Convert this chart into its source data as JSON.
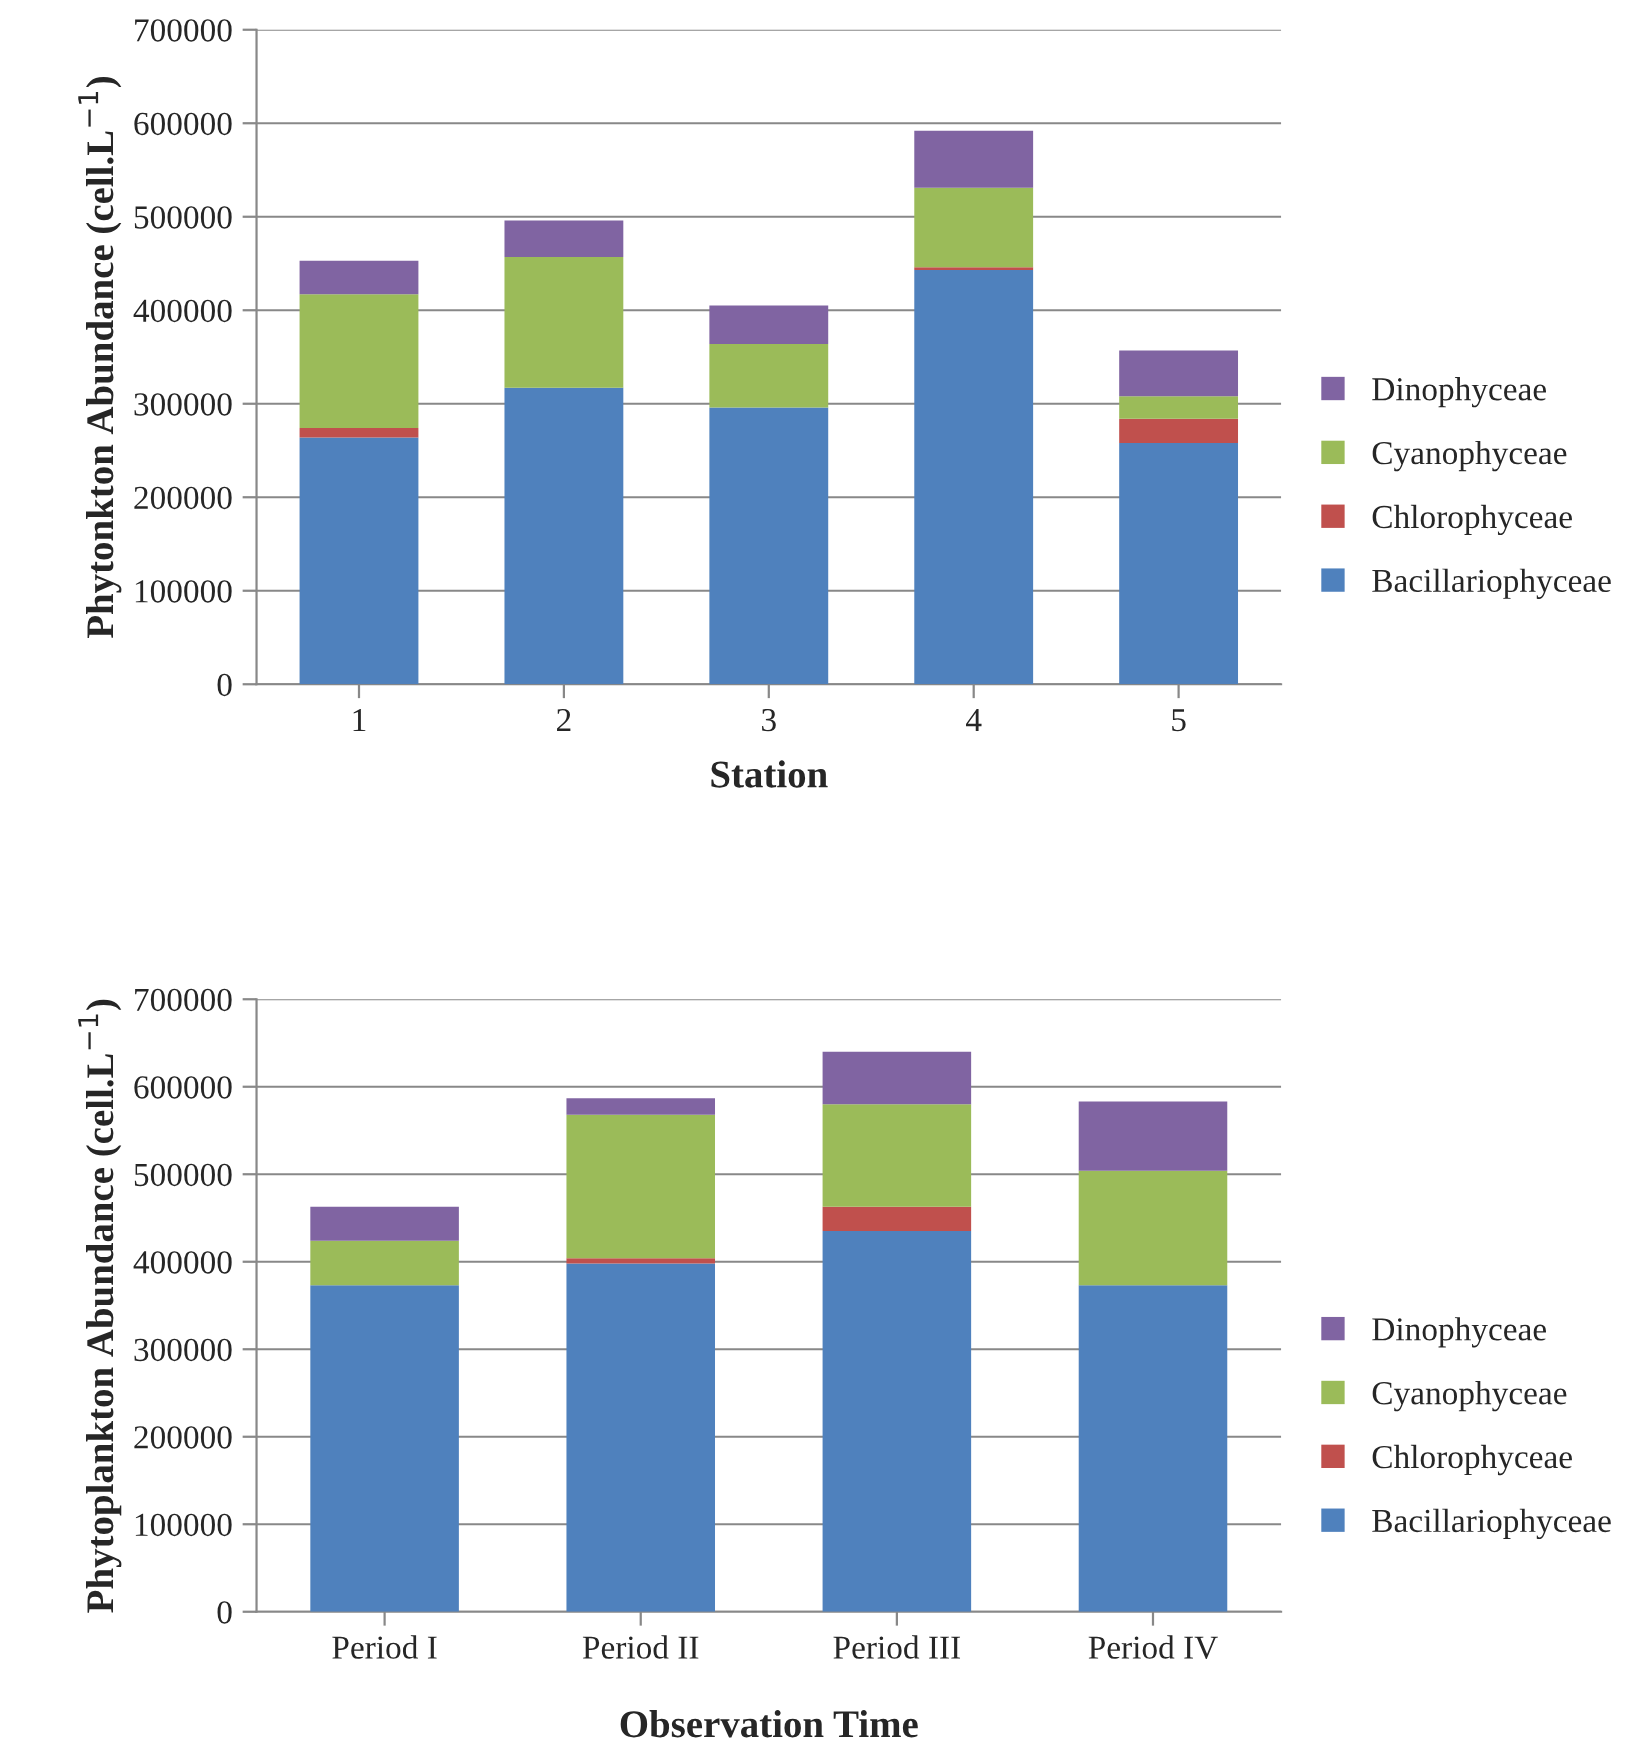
{
  "chart_data": [
    {
      "type": "bar",
      "stacked": true,
      "xlabel": "Station",
      "ylabel": "Phytonkton Abundance (cell.L$^{−1}$)",
      "categories": [
        "1",
        "2",
        "3",
        "4",
        "5"
      ],
      "ylim": [
        0,
        700000
      ],
      "yticks": [
        0,
        100000,
        200000,
        300000,
        400000,
        500000,
        600000,
        700000
      ],
      "grid": "y",
      "legend": "right",
      "series": [
        {
          "name": "Bacillariophyceae",
          "color": "#4f81bd",
          "values": [
            264000,
            317000,
            296000,
            443000,
            258000
          ]
        },
        {
          "name": "Chlorophyceae",
          "color": "#c0504d",
          "values": [
            10000,
            0,
            0,
            3000,
            26000
          ]
        },
        {
          "name": "Cyanophyceae",
          "color": "#9bbb59",
          "values": [
            143000,
            140000,
            68000,
            85000,
            24000
          ]
        },
        {
          "name": "Dinophyceae",
          "color": "#8064a2",
          "values": [
            36000,
            39000,
            41000,
            61000,
            49000
          ]
        }
      ]
    },
    {
      "type": "bar",
      "stacked": true,
      "xlabel": "Observation Time",
      "ylabel": "Phytoplankton Abundance (cell.L$^{−1}$)",
      "categories": [
        "Period I",
        "Period II",
        "Period III",
        "Period IV"
      ],
      "ylim": [
        0,
        700000
      ],
      "yticks": [
        0,
        100000,
        200000,
        300000,
        400000,
        500000,
        600000,
        700000
      ],
      "grid": "y",
      "legend": "right",
      "series": [
        {
          "name": "Bacillariophyceae",
          "color": "#4f81bd",
          "values": [
            373000,
            398000,
            435000,
            373000
          ]
        },
        {
          "name": "Chlorophyceae",
          "color": "#c0504d",
          "values": [
            0,
            6000,
            28000,
            0
          ]
        },
        {
          "name": "Cyanophyceae",
          "color": "#9bbb59",
          "values": [
            51000,
            164000,
            117000,
            131000
          ]
        },
        {
          "name": "Dinophyceae",
          "color": "#8064a2",
          "values": [
            39000,
            19000,
            60000,
            79000
          ]
        }
      ]
    }
  ]
}
